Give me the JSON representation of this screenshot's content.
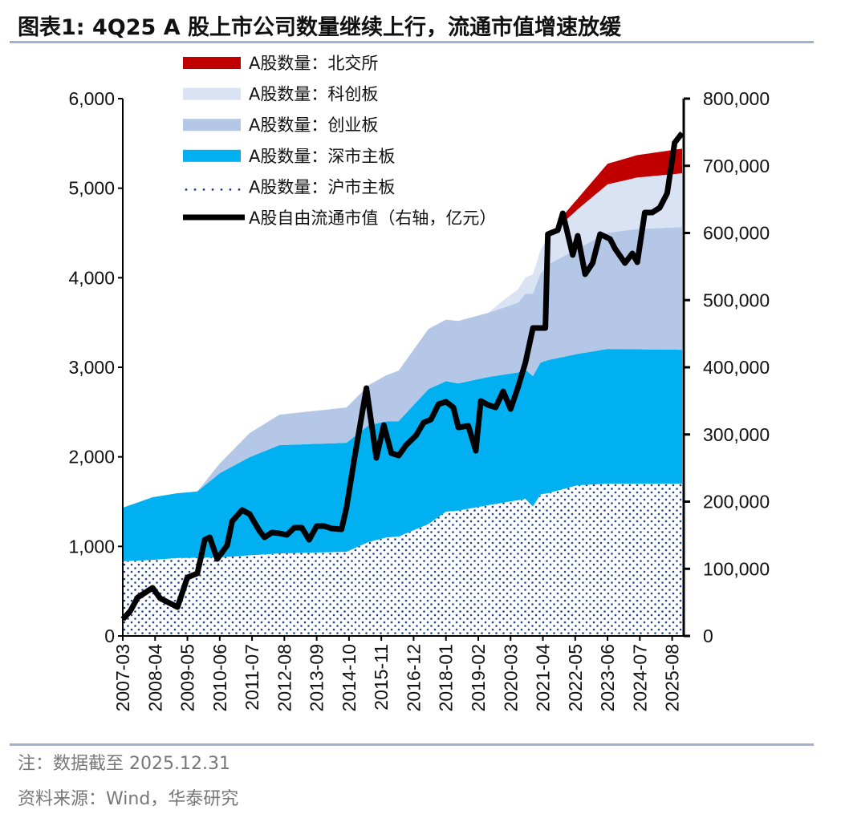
{
  "title": "图表1:  4Q25 A 股上市公司数量继续上行，流通市值增速放缓",
  "notes": [
    "注：数据截至 2025.12.31",
    "资料来源：Wind，华泰研究"
  ],
  "chart_data": {
    "type": "area+line",
    "title": "",
    "legend_placement": "top-left",
    "grid": false,
    "y_left": {
      "range": [
        0,
        6000
      ],
      "ticks": [
        "0",
        "1,000",
        "2,000",
        "3,000",
        "4,000",
        "5,000",
        "6,000"
      ]
    },
    "y_right": {
      "range": [
        0,
        800000
      ],
      "ticks": [
        "0",
        "100,000",
        "200,000",
        "300,000",
        "400,000",
        "500,000",
        "600,000",
        "700,000",
        "800,000"
      ]
    },
    "x": {
      "start": "2007-03",
      "end": "2025-12",
      "ticks": [
        "2007-03",
        "2008-04",
        "2009-05",
        "2010-06",
        "2011-07",
        "2012-08",
        "2013-09",
        "2014-10",
        "2015-11",
        "2016-12",
        "2018-01",
        "2019-02",
        "2020-03",
        "2021-04",
        "2022-05",
        "2023-06",
        "2024-07",
        "2025-08"
      ]
    },
    "colors": {
      "bse": "#c00000",
      "star": "#dae3f3",
      "chinext": "#b4c7e7",
      "sz_main": "#00b0f0",
      "sh_main_dots": "#1f3f8f",
      "market_cap": "#000000"
    },
    "stacked_series": [
      {
        "name": "A股数量：沪市主板",
        "key": "sh_main",
        "points": [
          [
            "2007-03",
            833
          ],
          [
            "2008-03",
            850
          ],
          [
            "2009-01",
            870
          ],
          [
            "2010-06",
            877
          ],
          [
            "2011-06",
            900
          ],
          [
            "2012-06",
            922
          ],
          [
            "2014-09",
            940
          ],
          [
            "2015-06",
            1050
          ],
          [
            "2016-01",
            1100
          ],
          [
            "2016-06",
            1110
          ],
          [
            "2017-06",
            1250
          ],
          [
            "2018-01",
            1388
          ],
          [
            "2018-06",
            1400
          ],
          [
            "2019-06",
            1460
          ],
          [
            "2020-09",
            1530
          ],
          [
            "2020-12",
            1445
          ],
          [
            "2021-03",
            1580
          ],
          [
            "2021-06",
            1594
          ],
          [
            "2022-06",
            1683
          ],
          [
            "2023-06",
            1700
          ],
          [
            "2025-12",
            1700
          ]
        ]
      },
      {
        "name": "A股数量：深市主板",
        "key": "sz_main",
        "points": [
          [
            "2007-03",
            599
          ],
          [
            "2008-03",
            699
          ],
          [
            "2009-01",
            724
          ],
          [
            "2009-09",
            740
          ],
          [
            "2010-06",
            940
          ],
          [
            "2011-06",
            1096
          ],
          [
            "2012-06",
            1209
          ],
          [
            "2014-09",
            1217
          ],
          [
            "2015-06",
            1305
          ],
          [
            "2016-06",
            1289
          ],
          [
            "2017-06",
            1507
          ],
          [
            "2018-06",
            1420
          ],
          [
            "2019-06",
            1432
          ],
          [
            "2020-06",
            1426
          ],
          [
            "2021-06",
            1486
          ],
          [
            "2022-06",
            1467
          ],
          [
            "2023-06",
            1505
          ],
          [
            "2025-12",
            1496
          ]
        ]
      },
      {
        "name": "A股数量：创业板",
        "key": "chinext",
        "points": [
          [
            "2009-09",
            0
          ],
          [
            "2010-06",
            108
          ],
          [
            "2011-06",
            269
          ],
          [
            "2012-06",
            340
          ],
          [
            "2014-09",
            394
          ],
          [
            "2015-06",
            447
          ],
          [
            "2016-06",
            564
          ],
          [
            "2017-06",
            672
          ],
          [
            "2018-06",
            698
          ],
          [
            "2019-06",
            716
          ],
          [
            "2020-06",
            779
          ],
          [
            "2021-06",
            1065
          ],
          [
            "2022-06",
            1174
          ],
          [
            "2023-06",
            1298
          ],
          [
            "2024-06",
            1343
          ],
          [
            "2025-12",
            1370
          ]
        ]
      },
      {
        "name": "A股数量：科创板",
        "key": "star",
        "points": [
          [
            "2019-06",
            0
          ],
          [
            "2019-12",
            82
          ],
          [
            "2020-06",
            150
          ],
          [
            "2020-12",
            215
          ],
          [
            "2021-06",
            310
          ],
          [
            "2021-12",
            377
          ],
          [
            "2022-06",
            440
          ],
          [
            "2023-06",
            540
          ],
          [
            "2024-06",
            575
          ],
          [
            "2025-12",
            600
          ]
        ]
      },
      {
        "name": "A股数量：北交所",
        "key": "bse",
        "points": [
          [
            "2021-10",
            0
          ],
          [
            "2021-12",
            80
          ],
          [
            "2022-06",
            120
          ],
          [
            "2023-06",
            230
          ],
          [
            "2024-06",
            250
          ],
          [
            "2025-12",
            275
          ]
        ]
      }
    ],
    "line_series": {
      "name": "A股自由流通市值（右轴，亿元）",
      "points": [
        [
          "2007-03",
          25000
        ],
        [
          "2007-06",
          37000
        ],
        [
          "2007-09",
          57300
        ],
        [
          "2008-03",
          71600
        ],
        [
          "2008-06",
          56100
        ],
        [
          "2009-01",
          43000
        ],
        [
          "2009-05",
          87200
        ],
        [
          "2009-09",
          93100
        ],
        [
          "2009-12",
          143300
        ],
        [
          "2010-02",
          146900
        ],
        [
          "2010-05",
          114600
        ],
        [
          "2010-09",
          134900
        ],
        [
          "2010-11",
          170700
        ],
        [
          "2011-03",
          187500
        ],
        [
          "2011-06",
          181500
        ],
        [
          "2011-10",
          156400
        ],
        [
          "2011-12",
          146900
        ],
        [
          "2012-03",
          154000
        ],
        [
          "2012-06",
          152800
        ],
        [
          "2012-09",
          150400
        ],
        [
          "2012-12",
          161200
        ],
        [
          "2013-03",
          161200
        ],
        [
          "2013-06",
          143300
        ],
        [
          "2013-09",
          163600
        ],
        [
          "2013-12",
          163600
        ],
        [
          "2014-03",
          160000
        ],
        [
          "2014-07",
          158800
        ],
        [
          "2014-09",
          191000
        ],
        [
          "2014-12",
          260300
        ],
        [
          "2015-05",
          369000
        ],
        [
          "2015-09",
          265100
        ],
        [
          "2015-12",
          314000
        ],
        [
          "2016-03",
          272200
        ],
        [
          "2016-06",
          268700
        ],
        [
          "2016-09",
          284200
        ],
        [
          "2017-01",
          298500
        ],
        [
          "2017-04",
          317600
        ],
        [
          "2017-07",
          322400
        ],
        [
          "2017-10",
          345100
        ],
        [
          "2018-01",
          348700
        ],
        [
          "2018-04",
          340300
        ],
        [
          "2018-06",
          310400
        ],
        [
          "2018-10",
          312800
        ],
        [
          "2019-01",
          275800
        ],
        [
          "2019-03",
          349900
        ],
        [
          "2019-06",
          343900
        ],
        [
          "2019-09",
          340300
        ],
        [
          "2019-12",
          364200
        ],
        [
          "2020-03",
          337900
        ],
        [
          "2020-06",
          370100
        ],
        [
          "2020-09",
          407200
        ],
        [
          "2020-12",
          458500
        ],
        [
          "2021-05",
          458500
        ],
        [
          "2021-06",
          598200
        ],
        [
          "2021-10",
          604200
        ],
        [
          "2021-12",
          629300
        ],
        [
          "2022-04",
          567200
        ],
        [
          "2022-06",
          595800
        ],
        [
          "2022-09",
          538500
        ],
        [
          "2022-12",
          555200
        ],
        [
          "2023-03",
          598200
        ],
        [
          "2023-07",
          591000
        ],
        [
          "2023-09",
          576700
        ],
        [
          "2024-01",
          555200
        ],
        [
          "2024-04",
          569600
        ],
        [
          "2024-06",
          556400
        ],
        [
          "2024-09",
          630400
        ],
        [
          "2024-12",
          630400
        ],
        [
          "2025-03",
          637600
        ],
        [
          "2025-06",
          659100
        ],
        [
          "2025-09",
          734300
        ],
        [
          "2025-12",
          748700
        ]
      ]
    },
    "legend": [
      "A股数量：北交所",
      "A股数量：科创板",
      "A股数量：创业板",
      "A股数量：深市主板",
      "A股数量：沪市主板",
      "A股自由流通市值（右轴，亿元）"
    ]
  }
}
